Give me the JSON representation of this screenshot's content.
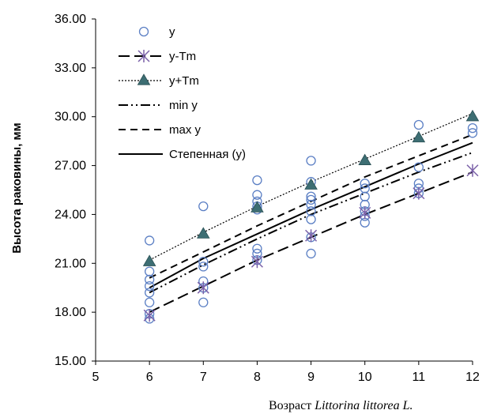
{
  "chart_data": {
    "type": "scatter",
    "xlabel_prefix": "Возраст ",
    "xlabel_italic": "Littorina littorea L.",
    "ylabel": "Высота раковины, мм",
    "xlim": [
      5,
      12
    ],
    "ylim": [
      15,
      36
    ],
    "x_ticks": [
      5,
      6,
      7,
      8,
      9,
      10,
      11,
      12
    ],
    "y_ticks": [
      "15.00",
      "18.00",
      "21.00",
      "24.00",
      "27.00",
      "30.00",
      "33.00",
      "36.00"
    ],
    "y_tick_values": [
      15,
      18,
      21,
      24,
      27,
      30,
      33,
      36
    ],
    "grid": false,
    "legend_position": "top-left",
    "colors": {
      "marker_blue": "#5b7fc4",
      "cross_purple": "#7a60a8",
      "triangle_teal": "#3d6e73",
      "line": "#000000"
    },
    "series": [
      {
        "name": "y",
        "kind": "points",
        "marker": "open-circle",
        "points": [
          [
            6,
            22.4
          ],
          [
            6,
            20.5
          ],
          [
            6,
            20.0
          ],
          [
            6,
            19.6
          ],
          [
            6,
            19.2
          ],
          [
            6,
            18.6
          ],
          [
            6,
            17.9
          ],
          [
            6,
            17.6
          ],
          [
            7,
            24.5
          ],
          [
            7,
            21.1
          ],
          [
            7,
            20.8
          ],
          [
            7,
            19.9
          ],
          [
            7,
            19.5
          ],
          [
            7,
            18.6
          ],
          [
            8,
            26.1
          ],
          [
            8,
            25.2
          ],
          [
            8,
            24.8
          ],
          [
            8,
            24.5
          ],
          [
            8,
            24.3
          ],
          [
            8,
            21.9
          ],
          [
            8,
            21.6
          ],
          [
            8,
            21.2
          ],
          [
            9,
            27.3
          ],
          [
            9,
            26.0
          ],
          [
            9,
            25.1
          ],
          [
            9,
            24.9
          ],
          [
            9,
            24.6
          ],
          [
            9,
            24.2
          ],
          [
            9,
            23.7
          ],
          [
            9,
            22.6
          ],
          [
            9,
            21.6
          ],
          [
            10,
            25.9
          ],
          [
            10,
            25.6
          ],
          [
            10,
            25.1
          ],
          [
            10,
            24.6
          ],
          [
            10,
            24.2
          ],
          [
            10,
            23.9
          ],
          [
            10,
            23.5
          ],
          [
            11,
            29.5
          ],
          [
            11,
            26.9
          ],
          [
            11,
            25.9
          ],
          [
            11,
            25.6
          ],
          [
            11,
            25.3
          ],
          [
            12,
            29.3
          ],
          [
            12,
            29.0
          ]
        ]
      },
      {
        "name": "y-Tm",
        "kind": "points",
        "marker": "asterisk",
        "points": [
          [
            6,
            17.8
          ],
          [
            7,
            19.5
          ],
          [
            8,
            21.1
          ],
          [
            9,
            22.7
          ],
          [
            10,
            24.1
          ],
          [
            11,
            25.3
          ],
          [
            12,
            26.7
          ]
        ]
      },
      {
        "name": "y+Tm",
        "kind": "points",
        "marker": "filled-triangle",
        "points": [
          [
            6,
            21.1
          ],
          [
            7,
            22.8
          ],
          [
            8,
            24.4
          ],
          [
            9,
            25.8
          ],
          [
            10,
            27.3
          ],
          [
            11,
            28.7
          ],
          [
            12,
            30.0
          ]
        ]
      },
      {
        "name": "min y",
        "kind": "curve",
        "dash": "dash-dot-dot",
        "points": [
          [
            6,
            19.2
          ],
          [
            7,
            20.9
          ],
          [
            8,
            22.5
          ],
          [
            9,
            24.0
          ],
          [
            10,
            25.3
          ],
          [
            11,
            26.6
          ],
          [
            12,
            27.8
          ]
        ]
      },
      {
        "name": "max y",
        "kind": "curve",
        "dash": "dash",
        "points": [
          [
            6,
            20.1
          ],
          [
            7,
            21.7
          ],
          [
            8,
            23.3
          ],
          [
            9,
            24.8
          ],
          [
            10,
            26.3
          ],
          [
            11,
            27.6
          ],
          [
            12,
            28.9
          ]
        ]
      },
      {
        "name": "Степенная (y)",
        "kind": "curve",
        "dash": "solid",
        "points": [
          [
            6,
            19.5
          ],
          [
            7,
            21.3
          ],
          [
            8,
            22.8
          ],
          [
            9,
            24.3
          ],
          [
            10,
            25.7
          ],
          [
            11,
            27.1
          ],
          [
            12,
            28.4
          ]
        ]
      },
      {
        "name": "",
        "kind": "curve",
        "dash": "dotted",
        "note_series": "y+Tm trend",
        "points": [
          [
            6,
            21.2
          ],
          [
            7,
            22.9
          ],
          [
            8,
            24.5
          ],
          [
            9,
            26.0
          ],
          [
            10,
            27.4
          ],
          [
            11,
            28.8
          ],
          [
            12,
            30.2
          ]
        ]
      },
      {
        "name": "",
        "kind": "curve",
        "dash": "long-dash",
        "note_series": "y-Tm trend",
        "points": [
          [
            6,
            18.0
          ],
          [
            7,
            19.6
          ],
          [
            8,
            21.2
          ],
          [
            9,
            22.6
          ],
          [
            10,
            24.0
          ],
          [
            11,
            25.3
          ],
          [
            12,
            26.6
          ]
        ]
      }
    ],
    "legend": [
      {
        "label": "y",
        "marker": "open-circle",
        "dash": "none"
      },
      {
        "label": "y-Tm",
        "marker": "asterisk",
        "dash": "long-dash"
      },
      {
        "label": "y+Tm",
        "marker": "filled-triangle",
        "dash": "dotted"
      },
      {
        "label": "min y",
        "marker": "none",
        "dash": "dash-dot-dot"
      },
      {
        "label": "max y",
        "marker": "none",
        "dash": "dash"
      },
      {
        "label": "Степенная (y)",
        "marker": "none",
        "dash": "solid"
      }
    ]
  }
}
